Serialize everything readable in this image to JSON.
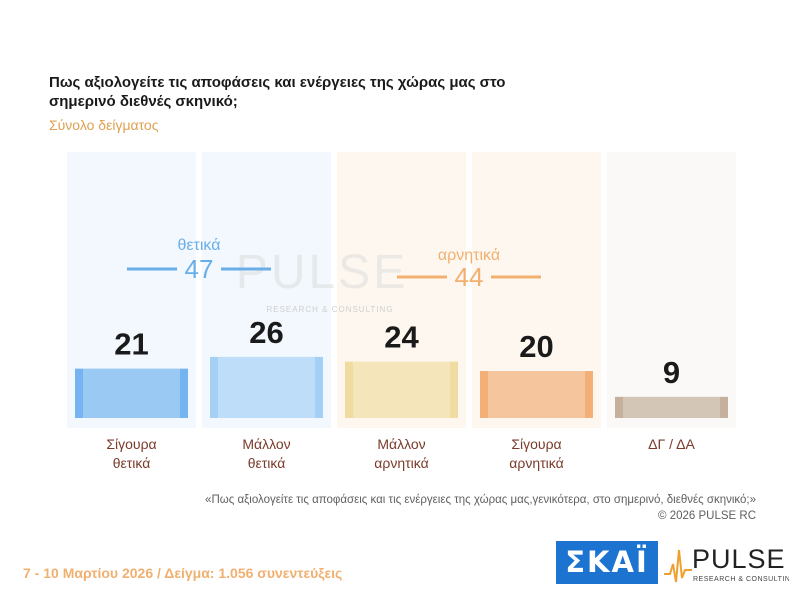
{
  "header": {
    "title": "Πως αξιολογείτε τις αποφάσεις και ενέργειες της χώρας μας στο σημερινό διεθνές σκηνικό;",
    "subtitle": "Σύνολο δείγματος"
  },
  "chart_data": {
    "type": "bar",
    "title": "Πως αξιολογείτε τις αποφάσεις και ενέργειες της χώρας μας στο σημερινό διεθνές σκηνικό;",
    "subtitle": "Σύνολο δείγματος",
    "categories": [
      [
        "Σίγουρα",
        "θετικά"
      ],
      [
        "Μάλλον",
        "θετικά"
      ],
      [
        "Μάλλον",
        "αρνητικά"
      ],
      [
        "Σίγουρα",
        "αρνητικά"
      ],
      [
        "ΔΓ / ΔΑ"
      ]
    ],
    "values": [
      21,
      26,
      24,
      20,
      9
    ],
    "colors": [
      "#74b4f0",
      "#a4d0f6",
      "#f0dca0",
      "#f2b078",
      "#c4b09c"
    ],
    "groups": [
      {
        "label": "θετικά",
        "total": "47",
        "color": "#6aaee8"
      },
      {
        "label": "αρνητικά",
        "total": "44",
        "color": "#f2b070"
      }
    ],
    "watermark": {
      "main": "PULSE",
      "sub": "RESEARCH & CONSULTING"
    }
  },
  "footer": {
    "quote": "«Πως αξιολογείτε τις αποφάσεις και τις ενέργειες της χώρας μας,γενικότερα, στο σημερινό, διεθνές σκηνικό;»",
    "copyright": "©  2026  PULSE RC",
    "date_sample": "7 - 10  Μαρτίου 2026  /  Δείγμα:  1.056 συνεντεύξεις"
  },
  "logos": {
    "skai": "ΣΚΑΪ",
    "pulse_main": "PULSE",
    "pulse_sub": "RESEARCH & CONSULTING"
  }
}
